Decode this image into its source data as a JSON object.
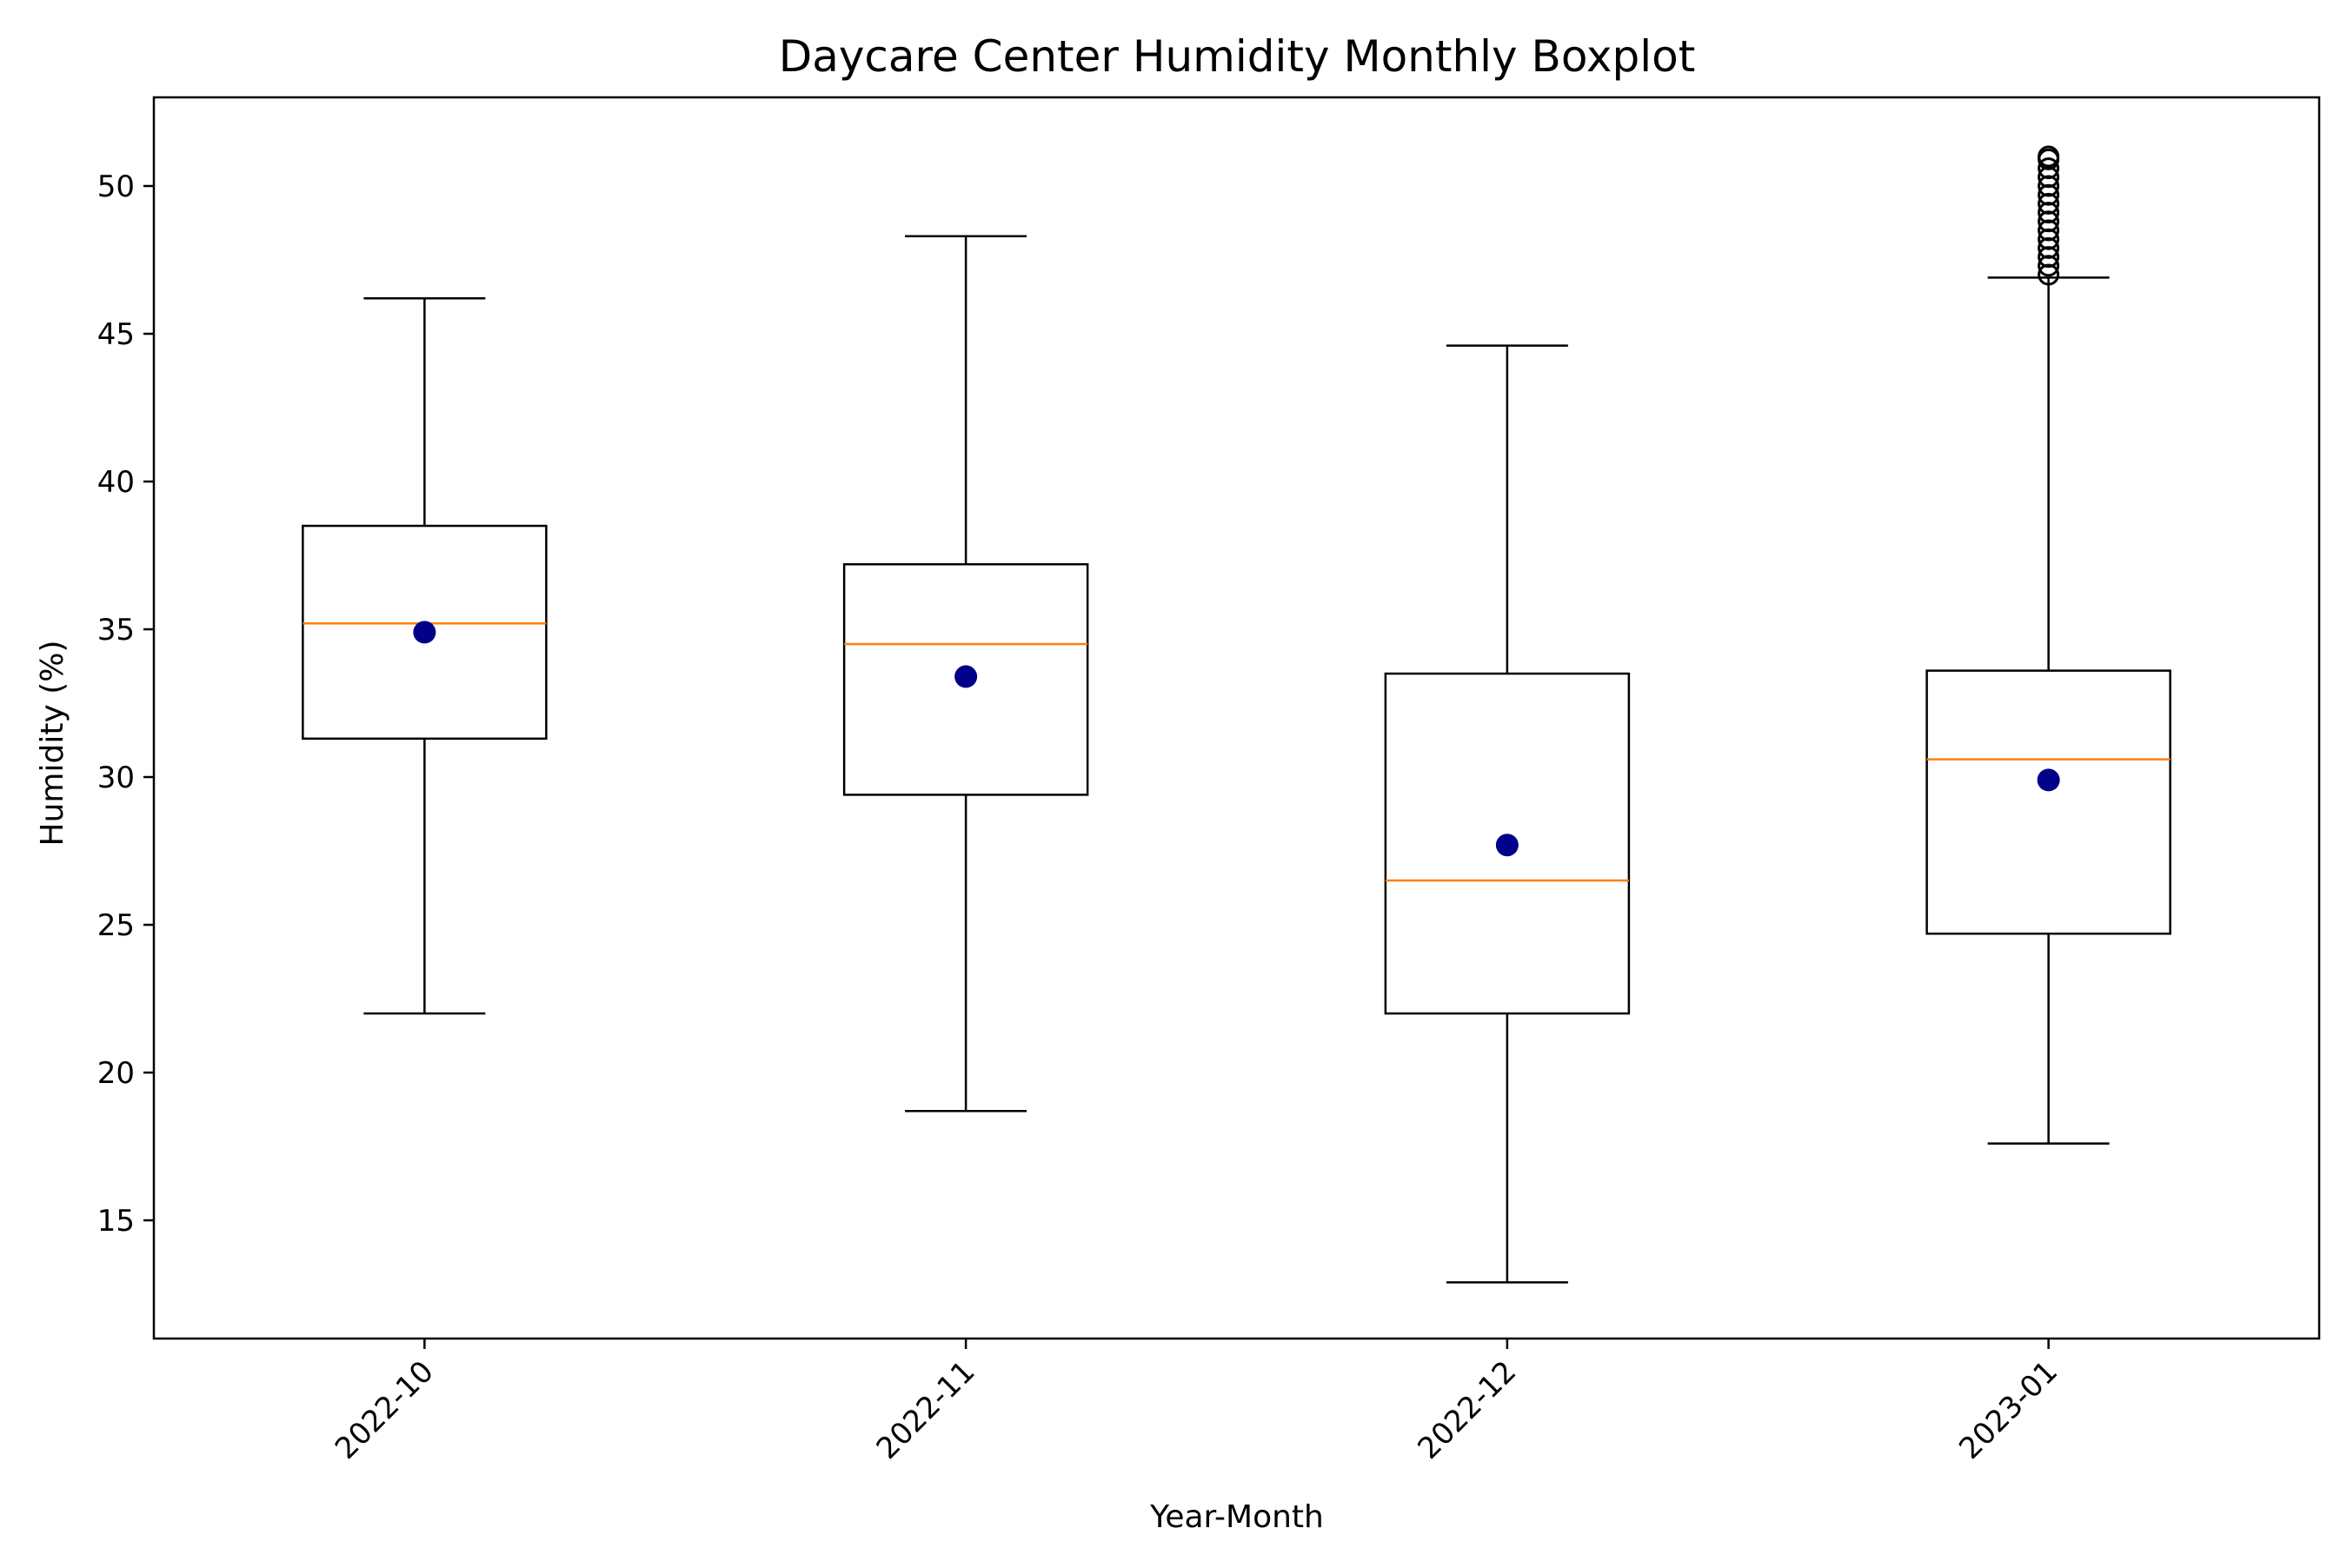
{
  "chart_data": {
    "type": "boxplot",
    "title": "Daycare Center Humidity Monthly Boxplot",
    "xlabel": "Year-Month",
    "ylabel": "Humidity (%)",
    "ylim": [
      11.0,
      53.0
    ],
    "yticks": [
      15,
      20,
      25,
      30,
      35,
      40,
      45,
      50
    ],
    "categories": [
      "2022-10",
      "2022-11",
      "2022-12",
      "2023-01"
    ],
    "grid": false,
    "colors": {
      "box": "#000000",
      "median": "#ff7f0e",
      "mean": "#00008b",
      "outlier": "#000000"
    },
    "boxes": [
      {
        "category": "2022-10",
        "whisker_low": 22.0,
        "q1": 31.3,
        "median": 35.2,
        "q3": 38.5,
        "whisker_high": 46.2,
        "mean": 34.9,
        "outliers": []
      },
      {
        "category": "2022-11",
        "whisker_low": 18.7,
        "q1": 29.4,
        "median": 34.5,
        "q3": 37.2,
        "whisker_high": 48.3,
        "mean": 33.4,
        "outliers": []
      },
      {
        "category": "2022-12",
        "whisker_low": 12.9,
        "q1": 22.0,
        "median": 26.5,
        "q3": 33.5,
        "whisker_high": 44.6,
        "mean": 27.7,
        "outliers": []
      },
      {
        "category": "2023-01",
        "whisker_low": 17.6,
        "q1": 24.7,
        "median": 30.6,
        "q3": 33.6,
        "whisker_high": 46.9,
        "mean": 29.9,
        "outliers": [
          47.0,
          47.3,
          47.6,
          47.9,
          48.2,
          48.5,
          48.8,
          49.1,
          49.4,
          49.7,
          50.0,
          50.3,
          50.6,
          50.9,
          51.0
        ]
      }
    ]
  }
}
